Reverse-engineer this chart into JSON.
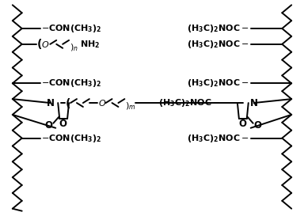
{
  "bg": "#ffffff",
  "lc": "black",
  "lw": 1.4
}
